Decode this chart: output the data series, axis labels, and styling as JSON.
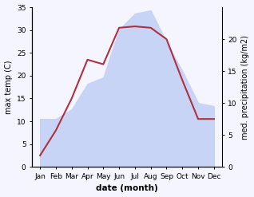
{
  "months": [
    "Jan",
    "Feb",
    "Mar",
    "Apr",
    "May",
    "Jun",
    "Jul",
    "Aug",
    "Sep",
    "Oct",
    "Nov",
    "Dec"
  ],
  "month_positions": [
    0,
    1,
    2,
    3,
    4,
    5,
    6,
    7,
    8,
    9,
    10,
    11
  ],
  "temperature": [
    2.5,
    8.0,
    15.0,
    23.5,
    22.5,
    30.5,
    30.8,
    30.5,
    28.0,
    19.0,
    10.5,
    10.5
  ],
  "precipitation": [
    7.5,
    7.5,
    9.0,
    13.0,
    14.0,
    21.5,
    24.0,
    24.5,
    19.5,
    15.0,
    10.0,
    9.5
  ],
  "temp_color": "#b03040",
  "precip_fill_color": "#c8d4f5",
  "ylabel_left": "max temp (C)",
  "ylabel_right": "med. precipitation (kg/m2)",
  "xlabel": "date (month)",
  "ylim_left": [
    0,
    35
  ],
  "ylim_right": [
    0,
    25
  ],
  "right_ticks": [
    0,
    5,
    10,
    15,
    20
  ],
  "left_ticks": [
    0,
    5,
    10,
    15,
    20,
    25,
    30,
    35
  ],
  "bg_color": "#f5f5ff"
}
